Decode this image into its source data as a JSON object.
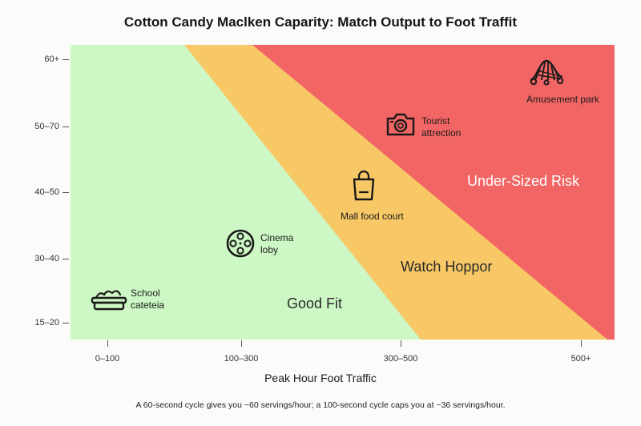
{
  "title": "Cotton Candy Maclken Caparity: Match Output to Foot Traffit",
  "x_axis": {
    "label": "Peak Hour Foot Traffic",
    "ticks": [
      "0–100",
      "100–300",
      "300–500",
      "500+"
    ]
  },
  "y_axis": {
    "ticks": [
      "60+",
      "50–70",
      "40–50",
      "30–40",
      "15–20"
    ]
  },
  "zones": {
    "good": {
      "label": "Good Fit",
      "color": "#cdf7c4"
    },
    "watch": {
      "label": "Watch Hoppor",
      "color": "#f7c865"
    },
    "under": {
      "label": "Under-Sized Risk",
      "color": "#f26565"
    }
  },
  "venues": {
    "school": {
      "line1": "School",
      "line2": "cateteia",
      "icon": "food-tray-icon"
    },
    "cinema": {
      "line1": "Cinema",
      "line2": "loby",
      "icon": "film-reel-icon"
    },
    "mall": {
      "line1": "Mall food court",
      "icon": "shopping-bag-icon"
    },
    "tourist": {
      "line1": "Tourist",
      "line2": "attrection",
      "icon": "camera-icon"
    },
    "amusement": {
      "line1": "Amusement park",
      "icon": "roller-coaster-icon"
    }
  },
  "footnote": "A 60-second cycle gives you ~60 servings/hour; a 100-second cycle caps you at ~36 servings/hour."
}
